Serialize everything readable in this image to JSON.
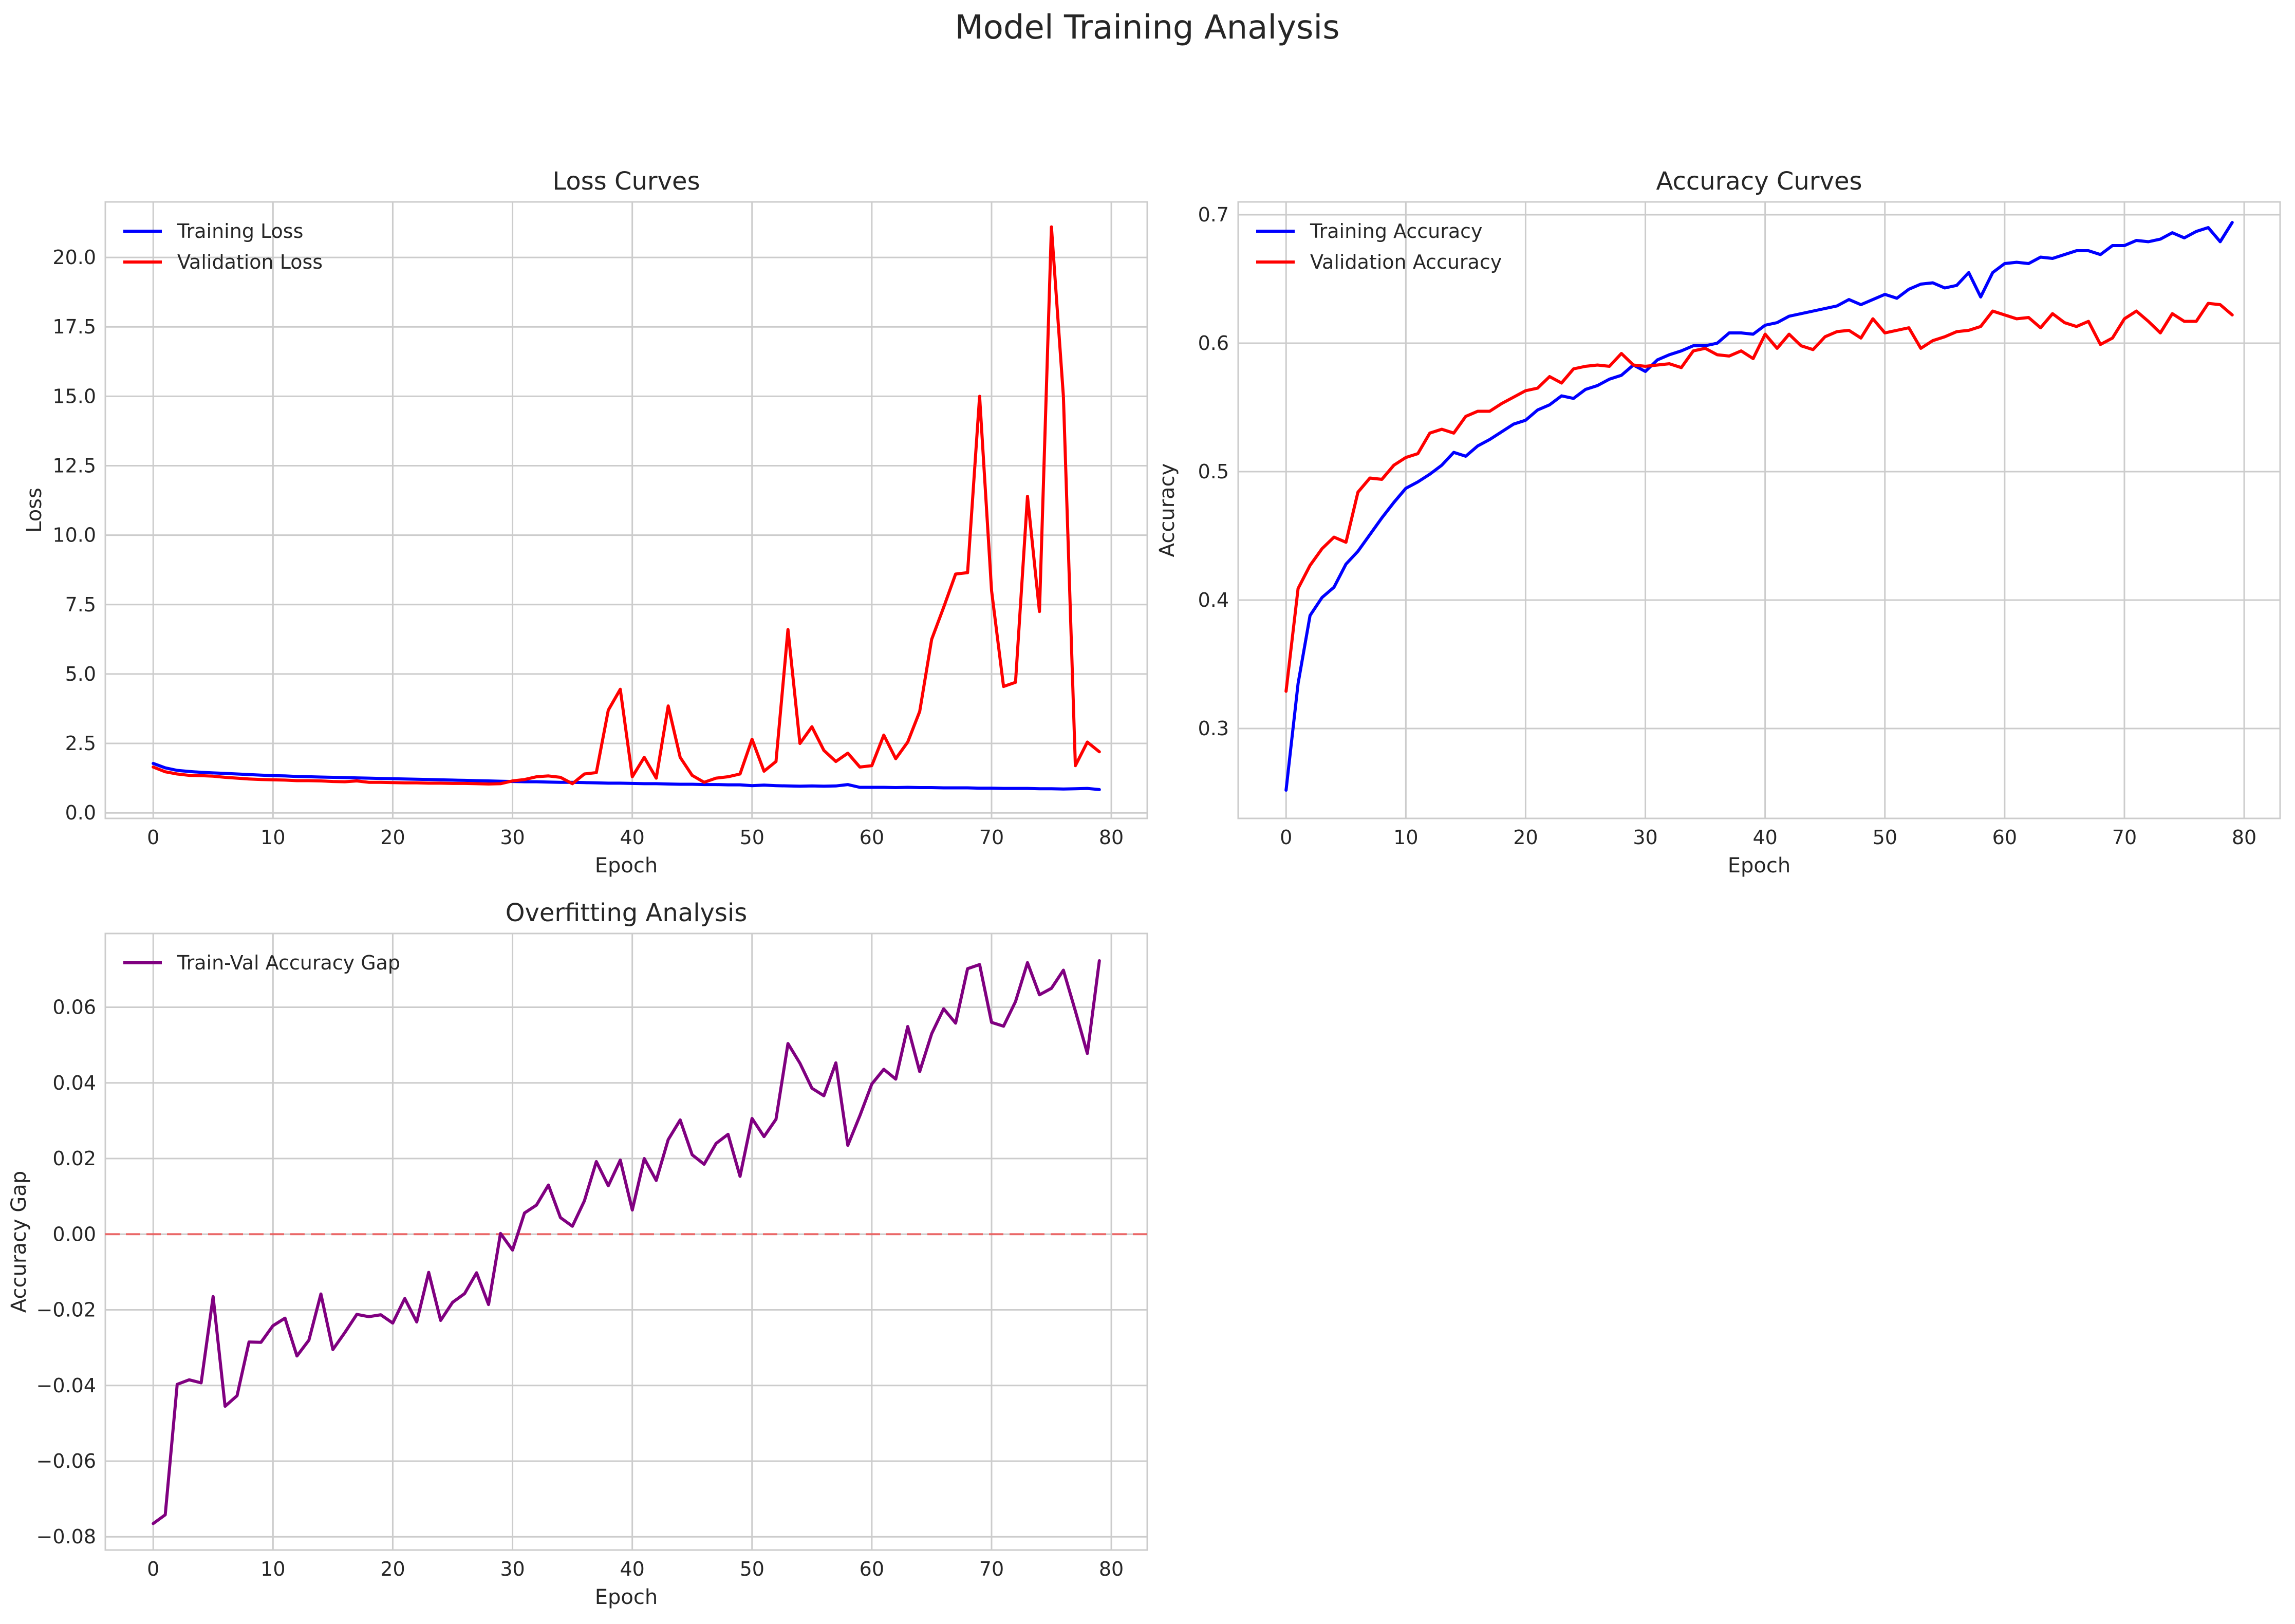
{
  "figure": {
    "title": "Model Training Analysis"
  },
  "colors": {
    "train": "#0000ff",
    "val": "#ff0000",
    "gap": "#800080",
    "zero_line": "#ff0000"
  },
  "chart_data": [
    {
      "id": "loss",
      "type": "line",
      "title": "Loss Curves",
      "xlabel": "Epoch",
      "ylabel": "Loss",
      "xlim": [
        -4,
        83
      ],
      "ylim": [
        -0.2,
        22
      ],
      "xticks": [
        0,
        10,
        20,
        30,
        40,
        50,
        60,
        70,
        80
      ],
      "yticks": [
        0.0,
        2.5,
        5.0,
        7.5,
        10.0,
        12.5,
        15.0,
        17.5,
        20.0
      ],
      "ytick_format": 1,
      "grid": true,
      "legend": "top-left",
      "series": [
        {
          "name": "Training Loss",
          "color": "#0000ff",
          "values": [
            1.78,
            1.62,
            1.53,
            1.49,
            1.46,
            1.44,
            1.42,
            1.4,
            1.38,
            1.36,
            1.34,
            1.33,
            1.31,
            1.3,
            1.29,
            1.28,
            1.27,
            1.26,
            1.25,
            1.24,
            1.23,
            1.22,
            1.21,
            1.2,
            1.19,
            1.18,
            1.17,
            1.16,
            1.15,
            1.14,
            1.13,
            1.12,
            1.12,
            1.11,
            1.1,
            1.1,
            1.09,
            1.08,
            1.07,
            1.07,
            1.06,
            1.05,
            1.05,
            1.04,
            1.03,
            1.03,
            1.02,
            1.02,
            1.01,
            1.01,
            0.98,
            1.0,
            0.98,
            0.97,
            0.96,
            0.97,
            0.96,
            0.97,
            1.02,
            0.92,
            0.92,
            0.92,
            0.91,
            0.92,
            0.91,
            0.91,
            0.9,
            0.9,
            0.9,
            0.89,
            0.89,
            0.88,
            0.88,
            0.88,
            0.87,
            0.87,
            0.86,
            0.87,
            0.88,
            0.84
          ]
        },
        {
          "name": "Validation Loss",
          "color": "#ff0000",
          "values": [
            1.65,
            1.48,
            1.4,
            1.35,
            1.34,
            1.32,
            1.28,
            1.25,
            1.22,
            1.2,
            1.19,
            1.18,
            1.16,
            1.16,
            1.15,
            1.13,
            1.12,
            1.15,
            1.1,
            1.1,
            1.09,
            1.08,
            1.08,
            1.07,
            1.07,
            1.06,
            1.06,
            1.05,
            1.04,
            1.05,
            1.15,
            1.2,
            1.3,
            1.33,
            1.28,
            1.05,
            1.4,
            1.45,
            3.7,
            4.45,
            1.3,
            2.0,
            1.25,
            3.85,
            2.0,
            1.35,
            1.1,
            1.25,
            1.3,
            1.4,
            2.65,
            1.5,
            1.85,
            6.6,
            2.5,
            3.1,
            2.25,
            1.85,
            2.15,
            1.65,
            1.7,
            2.8,
            1.95,
            2.55,
            3.65,
            6.25,
            7.4,
            8.6,
            8.65,
            15.0,
            8.0,
            4.55,
            4.7,
            11.4,
            7.25,
            21.1,
            15.0,
            1.7,
            2.55,
            2.2
          ]
        }
      ]
    },
    {
      "id": "acc",
      "type": "line",
      "title": "Accuracy Curves",
      "xlabel": "Epoch",
      "ylabel": "Accuracy",
      "xlim": [
        -4,
        83
      ],
      "ylim": [
        0.23,
        0.71
      ],
      "xticks": [
        0,
        10,
        20,
        30,
        40,
        50,
        60,
        70,
        80
      ],
      "yticks": [
        0.3,
        0.4,
        0.5,
        0.6,
        0.7
      ],
      "ytick_format": 1,
      "grid": true,
      "legend": "top-left",
      "series": [
        {
          "name": "Training Accuracy",
          "color": "#0000ff",
          "values": [
            0.252,
            0.335,
            0.388,
            0.402,
            0.41,
            0.428,
            0.438,
            0.451,
            0.464,
            0.476,
            0.487,
            0.492,
            0.498,
            0.505,
            0.515,
            0.512,
            0.52,
            0.525,
            0.531,
            0.537,
            0.54,
            0.548,
            0.552,
            0.559,
            0.557,
            0.564,
            0.567,
            0.572,
            0.575,
            0.583,
            0.578,
            0.587,
            0.591,
            0.594,
            0.598,
            0.598,
            0.6,
            0.608,
            0.608,
            0.607,
            0.614,
            0.616,
            0.621,
            0.623,
            0.625,
            0.627,
            0.629,
            0.634,
            0.63,
            0.634,
            0.638,
            0.635,
            0.642,
            0.646,
            0.647,
            0.643,
            0.645,
            0.655,
            0.636,
            0.655,
            0.662,
            0.663,
            0.662,
            0.667,
            0.666,
            0.669,
            0.672,
            0.672,
            0.669,
            0.676,
            0.676,
            0.68,
            0.679,
            0.681,
            0.686,
            0.682,
            0.687,
            0.69,
            0.679,
            0.694
          ]
        },
        {
          "name": "Validation Accuracy",
          "color": "#ff0000",
          "values": [
            0.329,
            0.409,
            0.427,
            0.44,
            0.449,
            0.445,
            0.484,
            0.495,
            0.494,
            0.505,
            0.511,
            0.514,
            0.53,
            0.533,
            0.53,
            0.543,
            0.547,
            0.547,
            0.553,
            0.558,
            0.563,
            0.565,
            0.574,
            0.569,
            0.58,
            0.582,
            0.583,
            0.582,
            0.592,
            0.583,
            0.582,
            0.583,
            0.584,
            0.581,
            0.594,
            0.596,
            0.591,
            0.59,
            0.594,
            0.588,
            0.607,
            0.596,
            0.607,
            0.598,
            0.595,
            0.605,
            0.609,
            0.61,
            0.604,
            0.619,
            0.608,
            0.61,
            0.612,
            0.596,
            0.602,
            0.605,
            0.609,
            0.61,
            0.613,
            0.625,
            0.622,
            0.619,
            0.62,
            0.612,
            0.623,
            0.616,
            0.613,
            0.617,
            0.599,
            0.604,
            0.619,
            0.625,
            0.617,
            0.608,
            0.623,
            0.617,
            0.617,
            0.631,
            0.63,
            0.622
          ]
        }
      ]
    },
    {
      "id": "gap",
      "type": "line",
      "title": "Overfitting Analysis",
      "xlabel": "Epoch",
      "ylabel": "Accuracy Gap",
      "xlim": [
        -4,
        83
      ],
      "ylim": [
        -0.0835,
        0.0795
      ],
      "xticks": [
        0,
        10,
        20,
        30,
        40,
        50,
        60,
        70,
        80
      ],
      "yticks": [
        -0.08,
        -0.06,
        -0.04,
        -0.02,
        0.0,
        0.02,
        0.04,
        0.06
      ],
      "ytick_format": 2,
      "grid": true,
      "legend": "top-left",
      "reference_line": {
        "y": 0,
        "style": "dashed",
        "color": "#ff0000"
      },
      "series": [
        {
          "name": "Train-Val Accuracy Gap",
          "color": "#800080",
          "values": [
            -0.0765,
            -0.0742,
            -0.0397,
            -0.0385,
            -0.0393,
            -0.0165,
            -0.0455,
            -0.0427,
            -0.0285,
            -0.0286,
            -0.0242,
            -0.0222,
            -0.0322,
            -0.028,
            -0.0158,
            -0.0305,
            -0.026,
            -0.0212,
            -0.0218,
            -0.0213,
            -0.0235,
            -0.017,
            -0.0232,
            -0.0101,
            -0.0228,
            -0.018,
            -0.0157,
            -0.0102,
            -0.0186,
            0.0002,
            -0.0042,
            0.0056,
            0.0077,
            0.013,
            0.0044,
            0.0021,
            0.0088,
            0.0192,
            0.0128,
            0.0196,
            0.0064,
            0.02,
            0.0142,
            0.025,
            0.0302,
            0.021,
            0.0185,
            0.024,
            0.0264,
            0.0153,
            0.0306,
            0.0258,
            0.0304,
            0.0504,
            0.0452,
            0.0386,
            0.0366,
            0.0453,
            0.0235,
            0.0313,
            0.0397,
            0.0436,
            0.041,
            0.0549,
            0.043,
            0.053,
            0.0596,
            0.0558,
            0.0702,
            0.0713,
            0.056,
            0.055,
            0.0615,
            0.0718,
            0.0633,
            0.065,
            0.0698,
            0.059,
            0.0478,
            0.0723
          ]
        }
      ]
    }
  ]
}
